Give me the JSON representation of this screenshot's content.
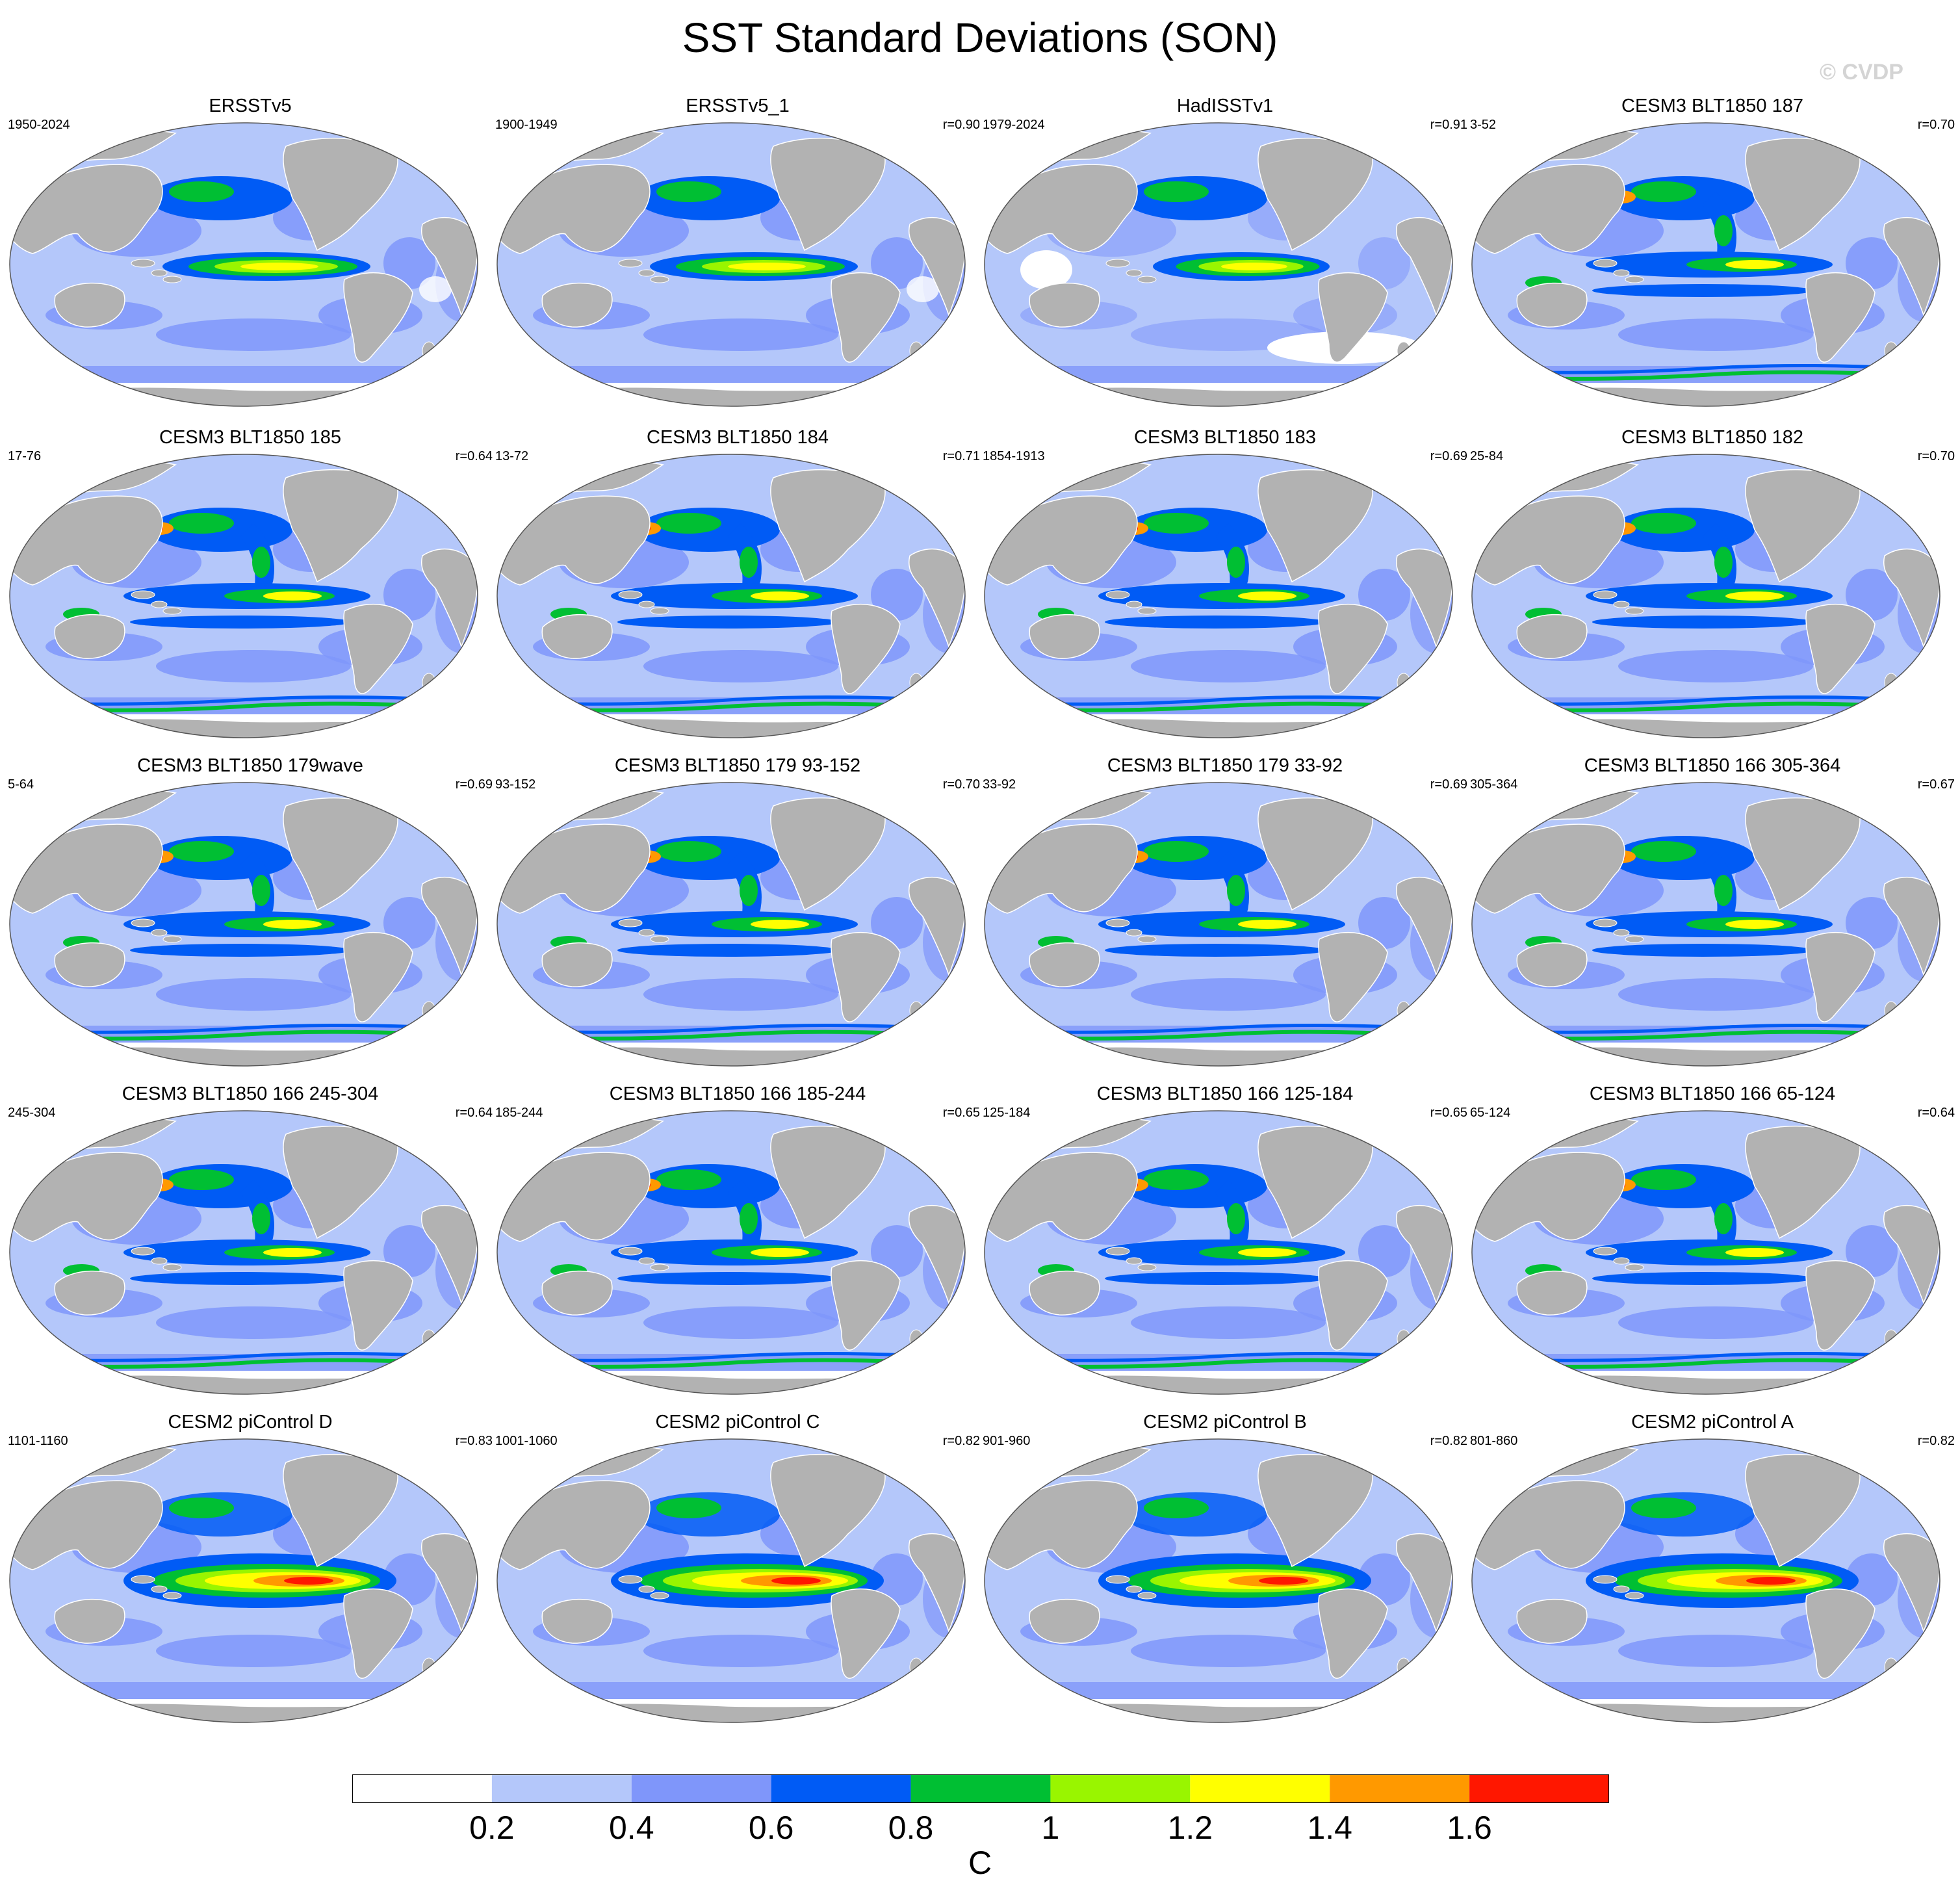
{
  "figure": {
    "title": "SST Standard Deviations (SON)",
    "watermark": "© CVDP"
  },
  "panels": [
    {
      "title": "ERSSTv5",
      "period": "1950-2024",
      "corr": "",
      "style": "obs"
    },
    {
      "title": "ERSSTv5_1",
      "period": "1900-1949",
      "corr": "r=0.90",
      "style": "obs"
    },
    {
      "title": "HadISSTv1",
      "period": "1979-2024",
      "corr": "r=0.91",
      "style": "obs_weak"
    },
    {
      "title": "CESM3 BLT1850 187",
      "period": "3-52",
      "corr": "r=0.70",
      "style": "cesm3"
    },
    {
      "title": "CESM3 BLT1850 185",
      "period": "17-76",
      "corr": "r=0.64",
      "style": "cesm3"
    },
    {
      "title": "CESM3 BLT1850 184",
      "period": "13-72",
      "corr": "r=0.71",
      "style": "cesm3"
    },
    {
      "title": "CESM3 BLT1850 183",
      "period": "1854-1913",
      "corr": "r=0.69",
      "style": "cesm3"
    },
    {
      "title": "CESM3 BLT1850 182",
      "period": "25-84",
      "corr": "r=0.70",
      "style": "cesm3"
    },
    {
      "title": "CESM3 BLT1850 179wave",
      "period": "5-64",
      "corr": "r=0.69",
      "style": "cesm3"
    },
    {
      "title": "CESM3 BLT1850 179 93-152",
      "period": "93-152",
      "corr": "r=0.70",
      "style": "cesm3"
    },
    {
      "title": "CESM3 BLT1850 179 33-92",
      "period": "33-92",
      "corr": "r=0.69",
      "style": "cesm3"
    },
    {
      "title": "CESM3 BLT1850 166 305-364",
      "period": "305-364",
      "corr": "r=0.67",
      "style": "cesm3"
    },
    {
      "title": "CESM3 BLT1850 166 245-304",
      "period": "245-304",
      "corr": "r=0.64",
      "style": "cesm3"
    },
    {
      "title": "CESM3 BLT1850 166 185-244",
      "period": "185-244",
      "corr": "r=0.65",
      "style": "cesm3"
    },
    {
      "title": "CESM3 BLT1850 166 125-184",
      "period": "125-184",
      "corr": "r=0.65",
      "style": "cesm3"
    },
    {
      "title": "CESM3 BLT1850 166 65-124",
      "period": "65-124",
      "corr": "r=0.64",
      "style": "cesm3"
    },
    {
      "title": "CESM2 piControl D",
      "period": "1101-1160",
      "corr": "r=0.83",
      "style": "cesm2"
    },
    {
      "title": "CESM2 piControl C",
      "period": "1001-1060",
      "corr": "r=0.82",
      "style": "cesm2"
    },
    {
      "title": "CESM2 piControl B",
      "period": "901-960",
      "corr": "r=0.82",
      "style": "cesm2"
    },
    {
      "title": "CESM2 piControl A",
      "period": "801-860",
      "corr": "r=0.82",
      "style": "cesm2"
    }
  ],
  "colorbar": {
    "colors": [
      "#ffffff",
      "#b4c7fa",
      "#7f96fa",
      "#005bf5",
      "#00bf33",
      "#99f500",
      "#ffff00",
      "#ff9900",
      "#ff1700"
    ],
    "tick_labels": [
      "0.2",
      "0.4",
      "0.6",
      "0.8",
      "1",
      "1.2",
      "1.4",
      "1.6"
    ],
    "units": "C"
  },
  "map_colors": {
    "land": "#b2b2b2",
    "coast": "#ffffff",
    "outline": "#555555"
  }
}
